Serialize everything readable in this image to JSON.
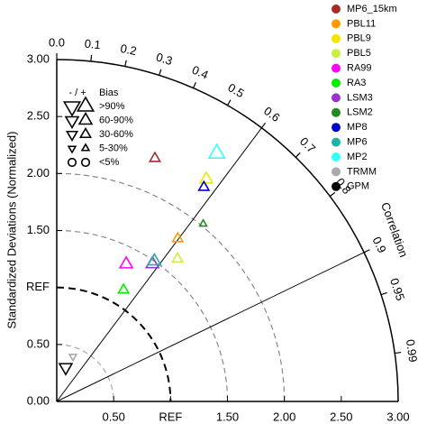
{
  "chart_data": {
    "type": "taylor",
    "y_label": "Standardized Deviations (Normalized)",
    "corr_label": "Correlation",
    "xlim": [
      0,
      3
    ],
    "ylim": [
      0,
      3
    ],
    "xticks": [
      {
        "value": 0.5,
        "label": "0.50"
      },
      {
        "value": 1,
        "label": "REF"
      },
      {
        "value": 1.5,
        "label": "1.50"
      },
      {
        "value": 2,
        "label": "2.00"
      },
      {
        "value": 2.5,
        "label": "2.50"
      },
      {
        "value": 3,
        "label": "3.00"
      }
    ],
    "yticks": [
      {
        "value": 0,
        "label": "0.00"
      },
      {
        "value": 0.5,
        "label": "0.50"
      },
      {
        "value": 1,
        "label": "REF"
      },
      {
        "value": 1.5,
        "label": "1.50"
      },
      {
        "value": 2,
        "label": "2.00"
      },
      {
        "value": 2.5,
        "label": "2.50"
      },
      {
        "value": 3,
        "label": "3.00"
      }
    ],
    "corr_ticks": [
      {
        "value": 0,
        "label": "0.0"
      },
      0.1,
      0.2,
      0.3,
      0.4,
      0.5,
      0.6,
      0.7,
      0.8,
      0.9,
      0.95,
      0.99
    ],
    "corr_lines": [
      0.6,
      0.9
    ],
    "std_arcs": [
      0.5,
      1,
      1.5,
      2
    ],
    "bias_legend": {
      "sign_header": "- / +",
      "title": "Bias",
      "classes": [
        ">90%",
        "60-90%",
        "30-60%",
        "5-30%",
        "<5%"
      ]
    },
    "series": [
      {
        "name": "MP6_15km",
        "color": "#a52a2a",
        "std": 2.3,
        "corr": 0.375,
        "bias_sign": "+",
        "bias_class": "30-60%"
      },
      {
        "name": "PBL11",
        "color": "#ff9900",
        "std": 1.78,
        "corr": 0.597,
        "bias_sign": "+",
        "bias_class": "30-60%"
      },
      {
        "name": "PBL9",
        "color": "#f2e600",
        "std": 2.35,
        "corr": 0.559,
        "bias_sign": "+",
        "bias_class": "60-90%"
      },
      {
        "name": "PBL5",
        "color": "#c8f03c",
        "std": 1.64,
        "corr": 0.647,
        "bias_sign": "+",
        "bias_class": "30-60%"
      },
      {
        "name": "RA99",
        "color": "#ff00ff",
        "std": 1.35,
        "corr": 0.452,
        "bias_sign": "+",
        "bias_class": "60-90%"
      },
      {
        "name": "RA3",
        "color": "#00ee00",
        "std": 1.14,
        "corr": 0.515,
        "bias_sign": "+",
        "bias_class": "30-60%"
      },
      {
        "name": "LSM3",
        "color": "#9933cc",
        "std": 1.47,
        "corr": 0.572,
        "bias_sign": "+",
        "bias_class": "60-90%"
      },
      {
        "name": "LSM2",
        "color": "#228b22",
        "std": 2.02,
        "corr": 0.637,
        "bias_sign": "+",
        "bias_class": "5-30%"
      },
      {
        "name": "MP8",
        "color": "#0000cd",
        "std": 2.28,
        "corr": 0.567,
        "bias_sign": "+",
        "bias_class": "30-60%"
      },
      {
        "name": "MP6",
        "color": "#20b2aa",
        "std": 1.5,
        "corr": 0.572,
        "bias_sign": "+",
        "bias_class": "60-90%"
      },
      {
        "name": "MP2",
        "color": "#33ffff",
        "std": 2.59,
        "corr": 0.543,
        "bias_sign": "+",
        "bias_class": ">90%"
      },
      {
        "name": "TRMM",
        "color": "#aaaaaa",
        "std": 0.42,
        "corr": 0.338,
        "bias_sign": "-",
        "bias_class": "5-30%"
      },
      {
        "name": "GPM",
        "color": "#000000",
        "std": 0.31,
        "corr": 0.254,
        "bias_sign": "-",
        "bias_class": "60-90%"
      }
    ]
  }
}
